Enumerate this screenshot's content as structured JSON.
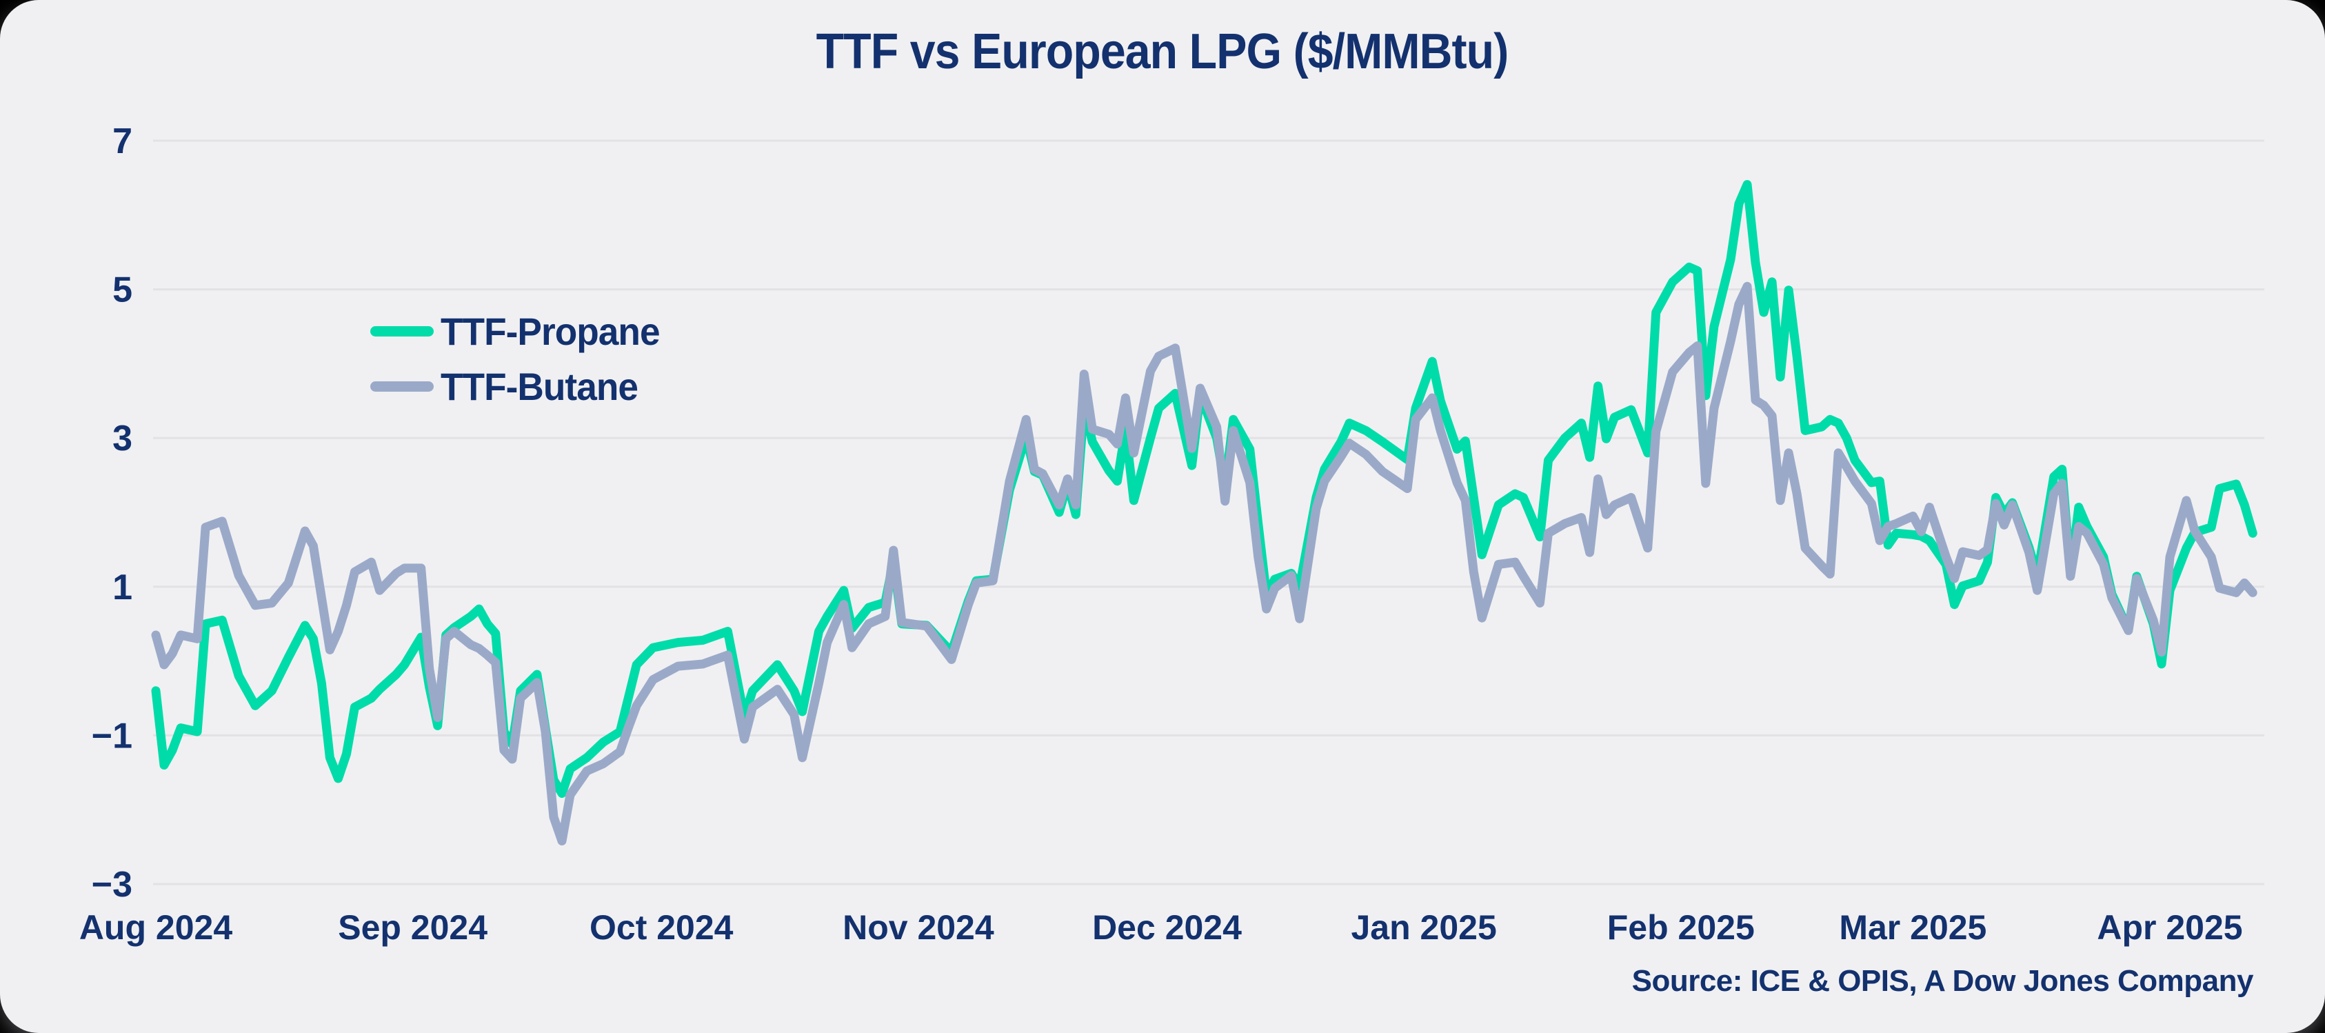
{
  "chart_data": {
    "type": "line",
    "title": "TTF vs European LPG ($/MMBtu)",
    "source": "Source: ICE & OPIS, A Dow Jones Company",
    "legend_position": "inside-top-left",
    "grid": "horizontal-only",
    "background_color": "#f0f0f2",
    "text_color": "#13316e",
    "gridline_color": "#e2e2e5",
    "ylim": [
      -3,
      7
    ],
    "y_ticks": [
      {
        "label": "7",
        "value": 7
      },
      {
        "label": "5",
        "value": 5
      },
      {
        "label": "3",
        "value": 3
      },
      {
        "label": "1",
        "value": 1
      },
      {
        "label": "−1",
        "value": -1
      },
      {
        "label": "−3",
        "value": -3
      }
    ],
    "x_ticks": [
      {
        "label": "Aug 2024",
        "date": "2024-08-01"
      },
      {
        "label": "Sep 2024",
        "date": "2024-09-01"
      },
      {
        "label": "Oct 2024",
        "date": "2024-10-01"
      },
      {
        "label": "Nov 2024",
        "date": "2024-11-01"
      },
      {
        "label": "Dec 2024",
        "date": "2024-12-01"
      },
      {
        "label": "Jan 2025",
        "date": "2025-01-01"
      },
      {
        "label": "Feb 2025",
        "date": "2025-02-01"
      },
      {
        "label": "Mar 2025",
        "date": "2025-03-01"
      },
      {
        "label": "Apr 2025",
        "date": "2025-04-01"
      }
    ],
    "x_range": [
      "2024-08-01",
      "2025-04-11"
    ],
    "x": [
      "2024-08-01",
      "2024-08-02",
      "2024-08-03",
      "2024-08-04",
      "2024-08-06",
      "2024-08-07",
      "2024-08-09",
      "2024-08-11",
      "2024-08-13",
      "2024-08-15",
      "2024-08-17",
      "2024-08-19",
      "2024-08-20",
      "2024-08-21",
      "2024-08-22",
      "2024-08-23",
      "2024-08-24",
      "2024-08-25",
      "2024-08-27",
      "2024-08-28",
      "2024-08-30",
      "2024-08-31",
      "2024-09-02",
      "2024-09-03",
      "2024-09-04",
      "2024-09-05",
      "2024-09-06",
      "2024-09-08",
      "2024-09-09",
      "2024-09-10",
      "2024-09-11",
      "2024-09-12",
      "2024-09-13",
      "2024-09-14",
      "2024-09-16",
      "2024-09-17",
      "2024-09-18",
      "2024-09-19",
      "2024-09-20",
      "2024-09-22",
      "2024-09-24",
      "2024-09-26",
      "2024-09-27",
      "2024-09-28",
      "2024-09-30",
      "2024-10-03",
      "2024-10-06",
      "2024-10-09",
      "2024-10-11",
      "2024-10-12",
      "2024-10-15",
      "2024-10-17",
      "2024-10-18",
      "2024-10-20",
      "2024-10-21",
      "2024-10-23",
      "2024-10-24",
      "2024-10-26",
      "2024-10-28",
      "2024-10-29",
      "2024-10-30",
      "2024-11-02",
      "2024-11-05",
      "2024-11-07",
      "2024-11-08",
      "2024-11-10",
      "2024-11-12",
      "2024-11-14",
      "2024-11-15",
      "2024-11-16",
      "2024-11-18",
      "2024-11-19",
      "2024-11-20",
      "2024-11-21",
      "2024-11-22",
      "2024-11-24",
      "2024-11-25",
      "2024-11-26",
      "2024-11-27",
      "2024-11-29",
      "2024-11-30",
      "2024-12-02",
      "2024-12-04",
      "2024-12-05",
      "2024-12-07",
      "2024-12-08",
      "2024-12-09",
      "2024-12-11",
      "2024-12-12",
      "2024-12-13",
      "2024-12-14",
      "2024-12-16",
      "2024-12-17",
      "2024-12-19",
      "2024-12-20",
      "2024-12-22",
      "2024-12-23",
      "2024-12-25",
      "2024-12-27",
      "2024-12-30",
      "2024-12-31",
      "2025-01-02",
      "2025-01-03",
      "2025-01-05",
      "2025-01-06",
      "2025-01-07",
      "2025-01-08",
      "2025-01-10",
      "2025-01-12",
      "2025-01-13",
      "2025-01-15",
      "2025-01-16",
      "2025-01-18",
      "2025-01-20",
      "2025-01-21",
      "2025-01-22",
      "2025-01-23",
      "2025-01-24",
      "2025-01-26",
      "2025-01-28",
      "2025-01-29",
      "2025-01-31",
      "2025-02-02",
      "2025-02-03",
      "2025-02-04",
      "2025-02-05",
      "2025-02-07",
      "2025-02-08",
      "2025-02-09",
      "2025-02-10",
      "2025-02-11",
      "2025-02-12",
      "2025-02-13",
      "2025-02-14",
      "2025-02-15",
      "2025-02-16",
      "2025-02-18",
      "2025-02-19",
      "2025-02-20",
      "2025-02-21",
      "2025-02-22",
      "2025-02-24",
      "2025-02-25",
      "2025-02-26",
      "2025-02-27",
      "2025-03-01",
      "2025-03-02",
      "2025-03-03",
      "2025-03-05",
      "2025-03-06",
      "2025-03-07",
      "2025-03-09",
      "2025-03-10",
      "2025-03-11",
      "2025-03-12",
      "2025-03-13",
      "2025-03-15",
      "2025-03-16",
      "2025-03-18",
      "2025-03-19",
      "2025-03-20",
      "2025-03-21",
      "2025-03-22",
      "2025-03-24",
      "2025-03-25",
      "2025-03-27",
      "2025-03-28",
      "2025-03-30",
      "2025-03-31",
      "2025-04-01",
      "2025-04-03",
      "2025-04-04",
      "2025-04-06",
      "2025-04-07",
      "2025-04-09",
      "2025-04-10",
      "2025-04-11"
    ],
    "series": [
      {
        "name": "TTF-Propane",
        "color": "#00dca9",
        "values": [
          -0.4,
          -1.4,
          -1.2,
          -0.9,
          -0.95,
          0.5,
          0.55,
          -0.2,
          -0.6,
          -0.4,
          0.05,
          0.48,
          0.3,
          -0.3,
          -1.3,
          -1.58,
          -1.25,
          -0.62,
          -0.5,
          -0.38,
          -0.18,
          -0.05,
          0.32,
          -0.35,
          -0.87,
          0.35,
          0.45,
          0.6,
          0.7,
          0.5,
          0.37,
          -0.95,
          -1.12,
          -0.4,
          -0.18,
          -0.9,
          -1.6,
          -1.78,
          -1.45,
          -1.3,
          -1.09,
          -0.95,
          -0.5,
          -0.05,
          0.18,
          0.25,
          0.28,
          0.4,
          -0.75,
          -0.4,
          -0.05,
          -0.4,
          -0.68,
          0.4,
          0.6,
          0.95,
          0.44,
          0.72,
          0.79,
          1.35,
          0.5,
          0.48,
          0.12,
          0.8,
          1.08,
          1.1,
          2.3,
          3.03,
          2.55,
          2.5,
          2.0,
          2.4,
          1.97,
          3.44,
          2.95,
          2.56,
          2.42,
          3.12,
          2.16,
          3.0,
          3.4,
          3.6,
          2.63,
          3.58,
          3.0,
          2.35,
          3.25,
          2.85,
          1.85,
          0.89,
          1.1,
          1.18,
          1.0,
          2.2,
          2.58,
          2.95,
          3.2,
          3.1,
          2.95,
          2.71,
          3.4,
          4.03,
          3.5,
          2.85,
          2.96,
          2.2,
          1.43,
          2.1,
          2.25,
          2.2,
          1.67,
          2.7,
          3.0,
          3.2,
          2.74,
          3.7,
          2.99,
          3.28,
          3.38,
          2.8,
          4.69,
          5.1,
          5.3,
          5.25,
          3.57,
          4.5,
          5.4,
          6.15,
          6.41,
          5.36,
          4.69,
          5.1,
          3.82,
          4.99,
          4.1,
          3.1,
          3.15,
          3.25,
          3.2,
          3.0,
          2.7,
          2.4,
          2.42,
          1.56,
          1.72,
          1.7,
          1.68,
          1.62,
          1.3,
          0.76,
          1.01,
          1.08,
          1.33,
          2.2,
          1.98,
          2.13,
          1.53,
          1.14,
          2.48,
          2.58,
          1.17,
          2.07,
          1.81,
          1.4,
          0.9,
          0.42,
          1.14,
          0.5,
          -0.04,
          0.95,
          1.52,
          1.73,
          1.8,
          2.32,
          2.38,
          2.1,
          1.72
        ]
      },
      {
        "name": "TTF-Butane",
        "color": "#9ba9c9",
        "values": [
          0.35,
          -0.05,
          0.1,
          0.35,
          0.3,
          1.8,
          1.88,
          1.15,
          0.75,
          0.78,
          1.05,
          1.75,
          1.55,
          0.85,
          0.15,
          0.4,
          0.75,
          1.2,
          1.33,
          0.95,
          1.18,
          1.25,
          1.25,
          -0.1,
          -0.76,
          0.3,
          0.4,
          0.22,
          0.17,
          0.08,
          -0.02,
          -1.2,
          -1.32,
          -0.5,
          -0.29,
          -0.95,
          -2.1,
          -2.42,
          -1.8,
          -1.48,
          -1.38,
          -1.22,
          -0.9,
          -0.6,
          -0.25,
          -0.07,
          -0.04,
          0.08,
          -1.05,
          -0.62,
          -0.38,
          -0.72,
          -1.3,
          -0.3,
          0.25,
          0.76,
          0.18,
          0.5,
          0.6,
          1.49,
          0.52,
          0.47,
          0.02,
          0.75,
          1.05,
          1.08,
          2.42,
          3.25,
          2.58,
          2.52,
          2.1,
          2.45,
          2.1,
          3.86,
          3.12,
          3.05,
          2.92,
          3.54,
          2.8,
          3.9,
          4.1,
          4.21,
          2.86,
          3.67,
          3.15,
          2.15,
          3.1,
          2.4,
          1.4,
          0.7,
          0.98,
          1.15,
          0.57,
          2.05,
          2.42,
          2.75,
          2.93,
          2.78,
          2.55,
          2.32,
          3.25,
          3.54,
          3.1,
          2.4,
          2.16,
          1.2,
          0.58,
          1.3,
          1.33,
          1.14,
          0.78,
          1.72,
          1.85,
          1.93,
          1.46,
          2.45,
          1.97,
          2.1,
          2.2,
          1.52,
          3.09,
          3.89,
          4.15,
          4.24,
          2.39,
          3.4,
          4.3,
          4.8,
          5.04,
          3.51,
          3.44,
          3.3,
          2.16,
          2.8,
          2.25,
          1.52,
          1.28,
          1.17,
          2.8,
          2.61,
          2.42,
          2.12,
          1.62,
          1.81,
          1.85,
          1.95,
          1.74,
          2.07,
          1.4,
          1.11,
          1.47,
          1.42,
          1.5,
          2.12,
          1.83,
          2.1,
          1.46,
          0.95,
          2.25,
          2.39,
          1.14,
          1.81,
          1.72,
          1.3,
          0.85,
          0.41,
          1.11,
          0.55,
          0.12,
          1.4,
          2.16,
          1.75,
          1.4,
          0.98,
          0.92,
          1.05,
          0.92
        ]
      }
    ]
  }
}
